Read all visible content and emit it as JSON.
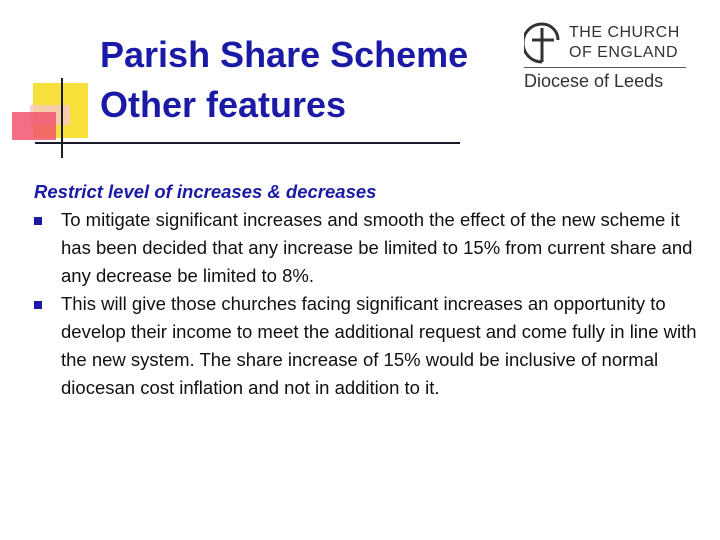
{
  "slide": {
    "title_lines": [
      "Parish Share Scheme",
      "Other features"
    ],
    "logo": {
      "line1": "THE CHURCH",
      "line2": "OF ENGLAND",
      "diocese": "Diocese of Leeds"
    },
    "subheading": "Restrict level of increases & decreases",
    "bullets": [
      "To mitigate significant increases and smooth the effect of the new scheme it has been decided that any increase be limited to 15% from current share and any decrease be limited to 8%.",
      "This will give those churches facing significant increases an opportunity to develop their income to meet the additional request and come fully in line with the new system. The share increase of 15% would be inclusive of normal diocesan cost inflation and not in addition to it."
    ],
    "colors": {
      "title": "#1a1aa6",
      "bullet": "#1a1aa6",
      "accent_yellow": "#f7e03a",
      "accent_red": "#f2566f"
    },
    "icons": {
      "bullet": "square-bullet-icon",
      "logo": "church-of-england-logo-icon"
    }
  }
}
